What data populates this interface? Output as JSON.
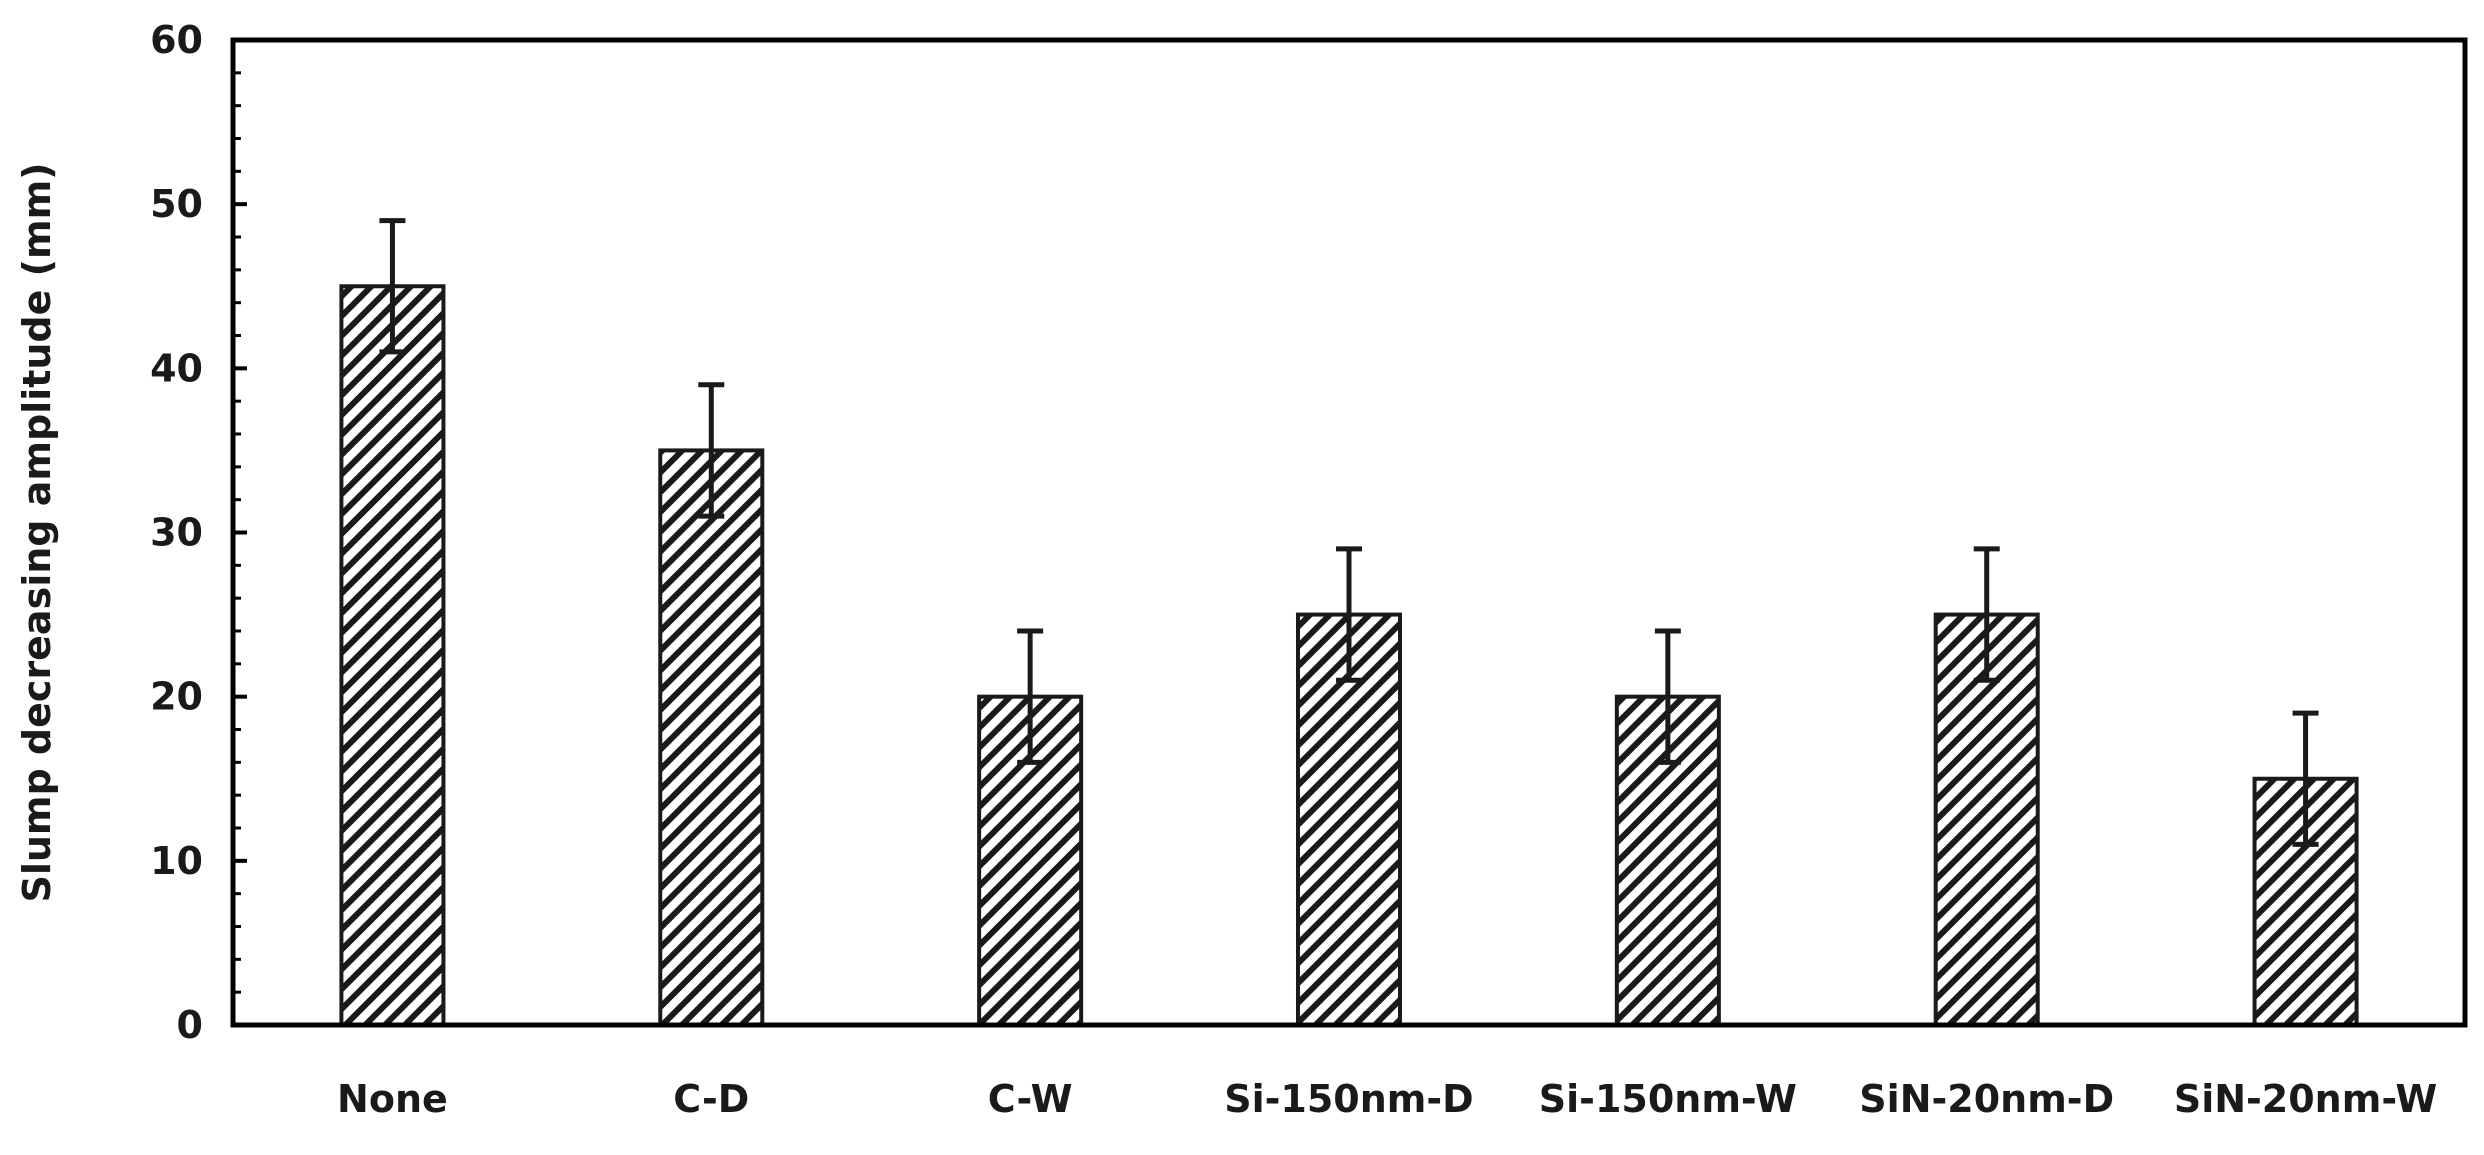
{
  "chart_data": {
    "type": "bar",
    "title": "",
    "xlabel": "",
    "ylabel": "Slump decreasing amplitude (mm)",
    "ylim": [
      0,
      60
    ],
    "yticks": [
      0,
      10,
      20,
      30,
      40,
      50,
      60
    ],
    "y_minor_step": 2,
    "grid": false,
    "legend": "none",
    "bar_pattern": "diagonal-hatch",
    "categories": [
      "None",
      "C-D",
      "C-W",
      "Si-150nm-D",
      "Si-150nm-W",
      "SiN-20nm-D",
      "SiN-20nm-W"
    ],
    "values": [
      45,
      35,
      20,
      25,
      20,
      25,
      15
    ],
    "error": [
      4,
      4,
      4,
      4,
      4,
      4,
      4
    ]
  },
  "colors": {
    "bar_fill": "#ffffff",
    "hatch": "#1a1a1a",
    "axis": "#000000"
  }
}
